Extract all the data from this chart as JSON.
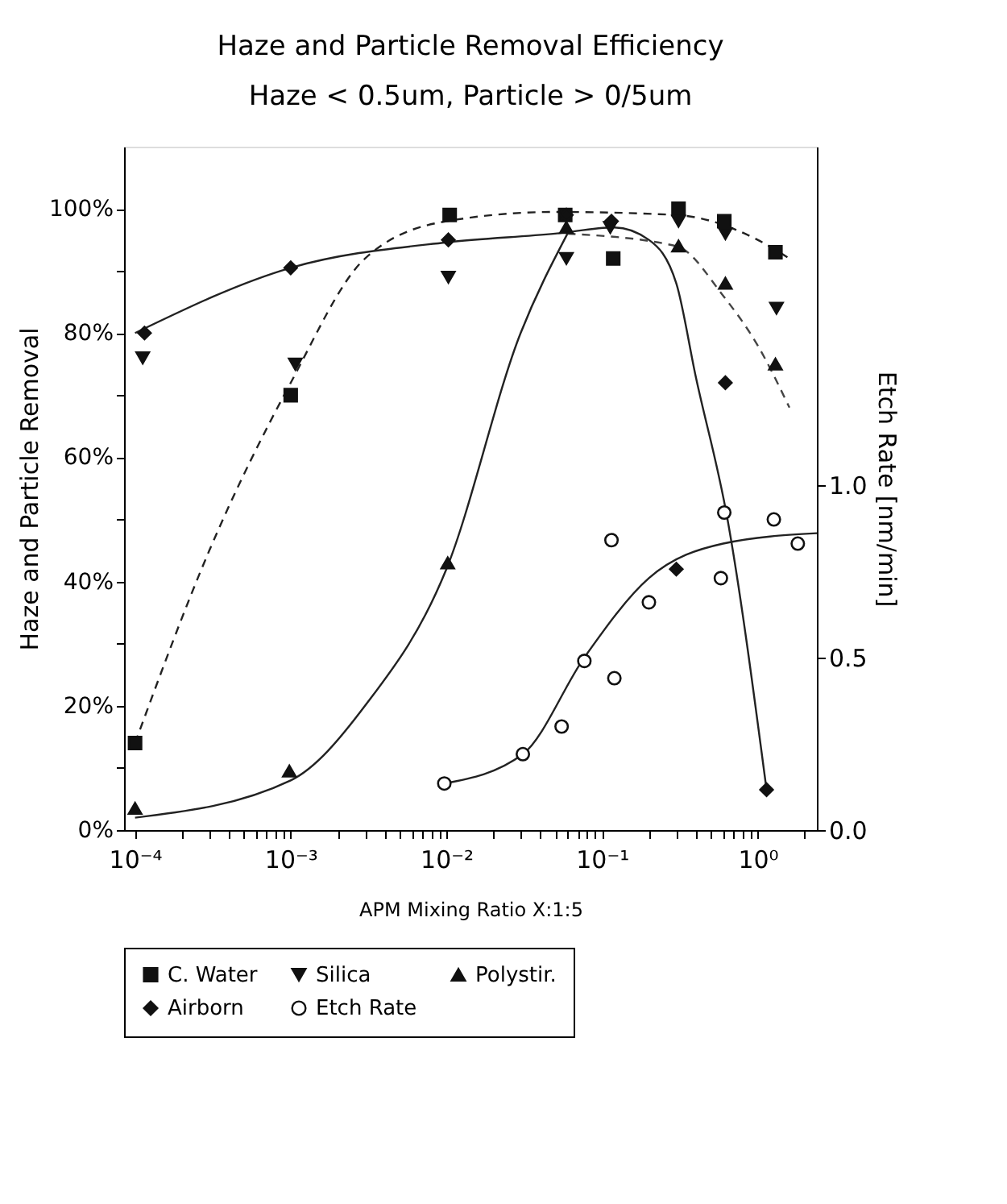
{
  "chart_data": {
    "type": "scatter",
    "title": "Haze and Particle Removal Efficiency",
    "subtitle": "Haze < 0.5um, Particle > 0/5um",
    "xlabel": "APM Mixing Ratio X:1:5",
    "ylabel": "Haze and Particle Removal",
    "y2label": "Etch Rate [nm/min]",
    "log": "x",
    "grid": false,
    "legend": "bottom",
    "xlim": [
      8.5e-05,
      2.4
    ],
    "xticks": [
      {
        "value": 0.0001,
        "label": "10⁻⁴"
      },
      {
        "value": 0.0002,
        "label": null
      },
      {
        "value": 0.0003,
        "label": null
      },
      {
        "value": 0.0004,
        "label": null
      },
      {
        "value": 0.0005,
        "label": null
      },
      {
        "value": 0.0006,
        "label": null
      },
      {
        "value": 0.0007,
        "label": null
      },
      {
        "value": 0.0008,
        "label": null
      },
      {
        "value": 0.0009,
        "label": null
      },
      {
        "value": 0.001,
        "label": "10⁻³"
      },
      {
        "value": 0.002,
        "label": null
      },
      {
        "value": 0.003,
        "label": null
      },
      {
        "value": 0.004,
        "label": null
      },
      {
        "value": 0.005,
        "label": null
      },
      {
        "value": 0.006,
        "label": null
      },
      {
        "value": 0.007,
        "label": null
      },
      {
        "value": 0.008,
        "label": null
      },
      {
        "value": 0.009,
        "label": null
      },
      {
        "value": 0.01,
        "label": "10⁻²"
      },
      {
        "value": 0.02,
        "label": null
      },
      {
        "value": 0.03,
        "label": null
      },
      {
        "value": 0.04,
        "label": null
      },
      {
        "value": 0.05,
        "label": null
      },
      {
        "value": 0.06,
        "label": null
      },
      {
        "value": 0.07,
        "label": null
      },
      {
        "value": 0.08,
        "label": null
      },
      {
        "value": 0.09,
        "label": null
      },
      {
        "value": 0.1,
        "label": "10⁻¹"
      },
      {
        "value": 0.2,
        "label": null
      },
      {
        "value": 0.3,
        "label": null
      },
      {
        "value": 0.4,
        "label": null
      },
      {
        "value": 0.5,
        "label": null
      },
      {
        "value": 0.6,
        "label": null
      },
      {
        "value": 0.7,
        "label": null
      },
      {
        "value": 0.8,
        "label": null
      },
      {
        "value": 0.9,
        "label": null
      },
      {
        "value": 1,
        "label": "10⁰"
      },
      {
        "value": 2,
        "label": null
      }
    ],
    "ylim": [
      0,
      110
    ],
    "yticks": [
      {
        "value": 0,
        "label": "0%"
      },
      {
        "value": 10,
        "label": null
      },
      {
        "value": 20,
        "label": "20%"
      },
      {
        "value": 30,
        "label": null
      },
      {
        "value": 40,
        "label": "40%"
      },
      {
        "value": 50,
        "label": null
      },
      {
        "value": 60,
        "label": "60%"
      },
      {
        "value": 70,
        "label": null
      },
      {
        "value": 80,
        "label": "80%"
      },
      {
        "value": 90,
        "label": null
      },
      {
        "value": 100,
        "label": "100%"
      }
    ],
    "y2lim": [
      0,
      1.98
    ],
    "y2ticks": [
      {
        "value": 0,
        "label": "0.0"
      },
      {
        "value": 0.5,
        "label": "0.5"
      },
      {
        "value": 1,
        "label": "1.0"
      }
    ],
    "series": [
      {
        "name": "C. Water",
        "marker": "square",
        "color": "#111111",
        "x": [
          0.0001,
          0.001,
          0.0105,
          0.058,
          0.118,
          0.31,
          0.61,
          1.3
        ],
        "values": [
          14,
          70,
          99,
          99,
          92,
          100,
          98,
          93
        ]
      },
      {
        "name": "Silica",
        "marker": "triangle-down",
        "color": "#111111",
        "x": [
          0.000112,
          0.00107,
          0.0103,
          0.059,
          0.113,
          0.31,
          0.62,
          1.32
        ],
        "values": [
          76,
          75,
          89,
          92,
          97,
          98,
          96,
          84
        ]
      },
      {
        "name": "Polystir.",
        "marker": "triangle",
        "color": "#111111",
        "x": [
          0.0001,
          0.00098,
          0.0102,
          0.059,
          0.31,
          0.62,
          1.3
        ],
        "values": [
          3.5,
          9.5,
          43,
          97,
          94,
          88,
          75
        ]
      },
      {
        "name": "Airborn",
        "marker": "diamond",
        "color": "#111111",
        "x": [
          0.000115,
          0.001,
          0.0103,
          0.059,
          0.115,
          0.3,
          0.62,
          1.14
        ],
        "values": [
          80,
          90.5,
          95,
          99,
          98,
          42,
          72,
          6.5
        ]
      },
      {
        "name": "Etch Rate",
        "marker": "circle",
        "axis": "y2",
        "color": "#111111",
        "x": [
          0.0097,
          0.031,
          0.055,
          0.077,
          0.12,
          0.115,
          0.2,
          0.58,
          0.61,
          1.27,
          1.81
        ],
        "values": [
          0.135,
          0.22,
          0.3,
          0.49,
          0.44,
          0.84,
          0.66,
          0.73,
          0.92,
          0.9,
          0.83
        ]
      },
      {
        "type": "line",
        "line_style": "dashed",
        "color": "#222222",
        "x": [
          0.0001,
          0.0003,
          0.001,
          0.003,
          0.01,
          0.05,
          0.3,
          1,
          1.6
        ],
        "values": [
          14,
          45,
          72,
          92,
          98,
          99.5,
          99,
          95,
          92
        ]
      },
      {
        "type": "line",
        "line_style": "solid",
        "color": "#222222",
        "x": [
          0.0001,
          0.001,
          0.003,
          0.01,
          0.03,
          0.06
        ],
        "values": [
          2,
          8,
          20,
          42,
          80,
          96
        ]
      },
      {
        "type": "line",
        "line_style": "dashed",
        "color": "#444444",
        "x": [
          0.06,
          0.3,
          0.6,
          1,
          1.6
        ],
        "values": [
          96,
          94,
          86,
          78,
          68
        ]
      },
      {
        "type": "line",
        "line_style": "solid",
        "color": "#222222",
        "x": [
          0.0001,
          0.001,
          0.01,
          0.05,
          0.12,
          0.2,
          0.3,
          0.4,
          0.64,
          1.14
        ],
        "values": [
          80,
          90.5,
          94.6,
          96,
          97,
          95,
          88,
          73,
          50,
          6.5
        ]
      },
      {
        "type": "line",
        "line_style": "solid",
        "axis": "y2",
        "color": "#222222",
        "x": [
          0.0097,
          0.031,
          0.077,
          0.2,
          0.6,
          2.4
        ],
        "values": [
          0.135,
          0.22,
          0.5,
          0.73,
          0.83,
          0.86
        ]
      }
    ]
  }
}
